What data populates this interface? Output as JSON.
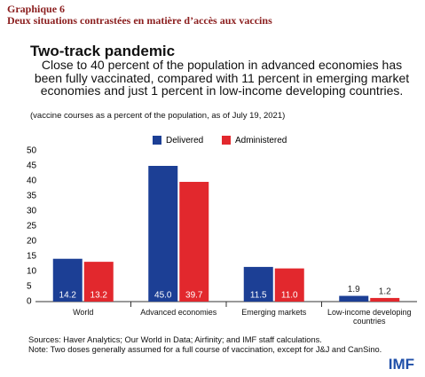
{
  "header": {
    "label": "Graphique 6",
    "title": "Deux situations contrastées en matière d’accès aux vaccins"
  },
  "chart_data": {
    "type": "bar",
    "title": "Two-track pandemic",
    "subtitle": "Close to 40 percent of the population in advanced economies has been fully vaccinated, compared with 11 percent in emerging market economies and just 1 percent in low-income developing countries.",
    "note": "(vaccine courses as a percent of the population, as of July 19, 2021)",
    "categories": [
      "World",
      "Advanced economies",
      "Emerging markets",
      "Low-income developing countries"
    ],
    "series": [
      {
        "name": "Delivered",
        "color": "#1c3f95",
        "values": [
          14.2,
          45.0,
          11.5,
          1.9
        ],
        "value_labels": [
          "14.2",
          "45.0",
          "11.5",
          "1.9"
        ]
      },
      {
        "name": "Administered",
        "color": "#e2282d",
        "values": [
          13.2,
          39.7,
          11.0,
          1.2
        ],
        "value_labels": [
          "13.2",
          "39.7",
          "11.0",
          "1.2"
        ]
      }
    ],
    "ylim": [
      0,
      50
    ],
    "yticks": [
      0,
      5,
      10,
      15,
      20,
      25,
      30,
      35,
      40,
      45,
      50
    ],
    "grid": false,
    "legend": "top",
    "sources": "Sources: Haver Analytics; Our World in Data; Airfinity; and IMF staff calculations.",
    "footnote": "Note: Two doses generally assumed for a full course of vaccination, except for J&J and CanSino."
  },
  "logo": "IMF"
}
